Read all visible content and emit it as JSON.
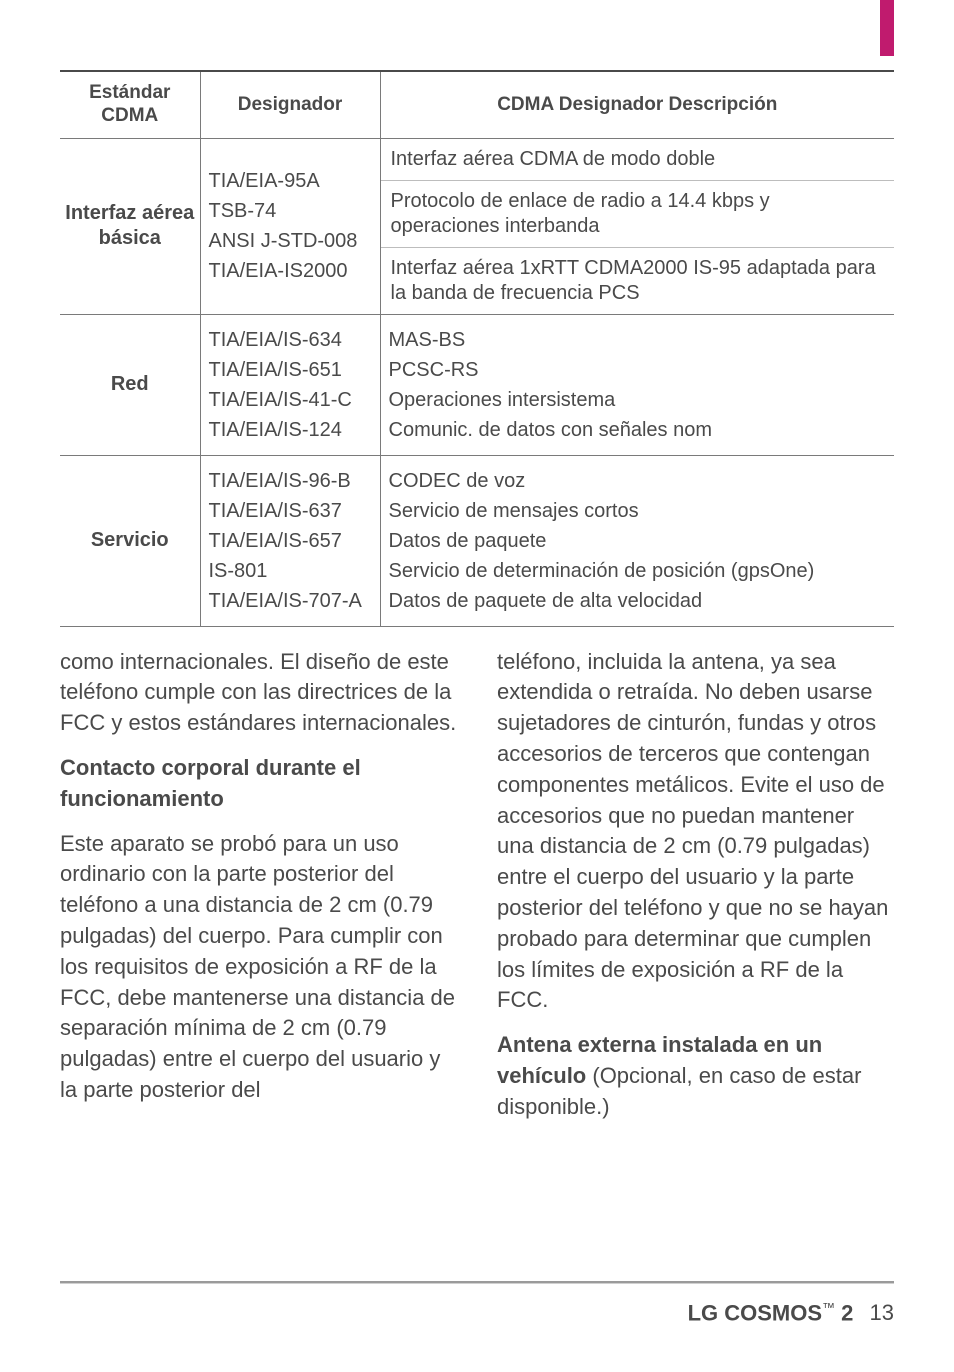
{
  "table": {
    "headers": [
      "Estándar CDMA",
      "Designador",
      "CDMA Designador Descripción"
    ],
    "rows": [
      {
        "rowhead": "Interfaz aérea básica",
        "designator_lines": [
          "TIA/EIA-95A",
          "TSB-74",
          "ANSI J-STD-008",
          "TIA/EIA-IS2000"
        ],
        "desc_blocks": [
          "Interfaz aérea CDMA de modo doble",
          "Protocolo de enlace de radio a 14.4 kbps y operaciones interbanda",
          "Interfaz aérea 1xRTT CDMA2000 IS-95 adaptada para la banda de frecuencia PCS"
        ]
      },
      {
        "rowhead": "Red",
        "designator_lines": [
          "TIA/EIA/IS-634",
          "TIA/EIA/IS-651",
          "TIA/EIA/IS-41-C",
          "TIA/EIA/IS-124"
        ],
        "desc_lines": [
          "MAS-BS",
          "PCSC-RS",
          "Operaciones intersistema",
          "Comunic. de datos con señales nom"
        ]
      },
      {
        "rowhead": "Servicio",
        "designator_lines": [
          "TIA/EIA/IS-96-B",
          "TIA/EIA/IS-637",
          "TIA/EIA/IS-657",
          "IS-801",
          "TIA/EIA/IS-707-A"
        ],
        "desc_lines": [
          "CODEC de voz",
          "Servicio de mensajes cortos",
          "Datos de paquete",
          "Servicio de determinación de posición (gpsOne)",
          "Datos de paquete de alta velocidad"
        ]
      }
    ]
  },
  "body": {
    "left": {
      "p1": "como internacionales. El diseño de este teléfono cumple con las directrices de la FCC y estos estándares internacionales.",
      "sub": "Contacto corporal durante el funcionamiento",
      "p2": "Este aparato se probó para un uso ordinario con la parte posterior del teléfono a una distancia de 2 cm (0.79 pulgadas) del cuerpo. Para cumplir con los requisitos de exposición a RF de la FCC, debe mantenerse una distancia de separación mínima de 2 cm (0.79 pulgadas) entre el cuerpo del usuario y la parte posterior del"
    },
    "right": {
      "p1": "teléfono, incluida la antena, ya sea extendida o retraída. No deben usarse sujetadores de cinturón, fundas y otros accesorios de terceros que contengan componentes metálicos. Evite el uso de accesorios que no puedan mantener una distancia de 2 cm (0.79 pulgadas) entre el cuerpo del usuario y la parte posterior del teléfono y que no se hayan probado para determinar que cumplen los límites de exposición a RF de la FCC.",
      "p2_bold": "Antena externa instalada en un vehículo",
      "p2_rest": " (Opcional, en caso de estar disponible.)"
    }
  },
  "footer": {
    "brand": "LG COSMOS",
    "model": "2",
    "page": "13"
  }
}
